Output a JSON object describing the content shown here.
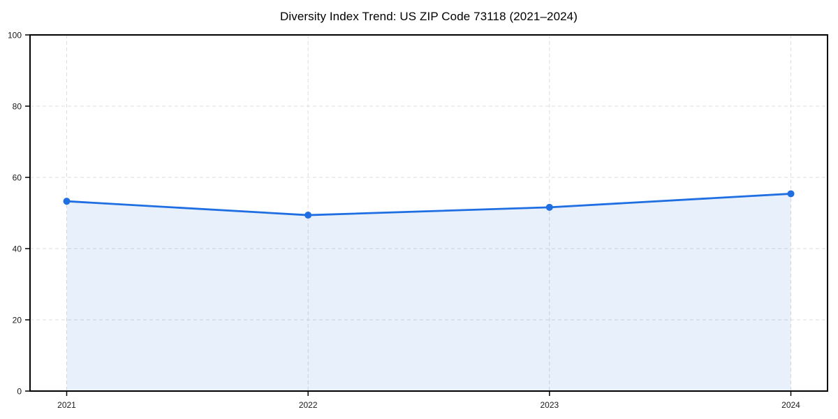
{
  "figure": {
    "background": "#ffffff"
  },
  "chart_data": {
    "type": "line",
    "title": "Diversity Index Trend: US ZIP Code 73118 (2021–2024)",
    "x": [
      2021,
      2022,
      2023,
      2024
    ],
    "x_tick_labels": [
      "2021",
      "2022",
      "2023",
      "2024"
    ],
    "series": [
      {
        "name": "Diversity Index",
        "values": [
          53.3,
          49.4,
          51.6,
          55.4
        ]
      }
    ],
    "xlabel": "",
    "ylabel": "",
    "ylim": [
      0,
      100
    ],
    "yticks": [
      0,
      20,
      40,
      60,
      80,
      100
    ],
    "y_tick_labels": [
      "0",
      "20",
      "40",
      "60",
      "80",
      "100"
    ],
    "grid": true,
    "grid_style": "dashed",
    "legend_position": "none",
    "area_fill": true,
    "colors": {
      "line": "#1f6fe3",
      "marker": "#1f6fe3",
      "fill": "rgba(31, 111, 227, 0.10)",
      "grid": "#dcdcdc",
      "axis": "#000000",
      "tick_text": "#1a1a1a",
      "title_text": "#000000"
    }
  }
}
